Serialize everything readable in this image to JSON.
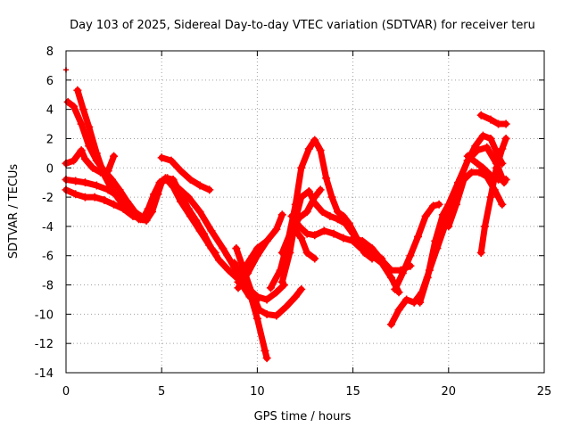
{
  "chart_data": {
    "type": "scatter",
    "title": "Day 103 of 2025, Sidereal Day-to-day VTEC variation (SDTVAR) for receiver teru",
    "xlabel": "GPS time / hours",
    "ylabel": "SDTVAR / TECUs",
    "xlim": [
      0,
      25
    ],
    "ylim": [
      -14,
      8
    ],
    "xticks": [
      0,
      5,
      10,
      15,
      20,
      25
    ],
    "yticks": [
      -14,
      -12,
      -10,
      -8,
      -6,
      -4,
      -2,
      0,
      2,
      4,
      6,
      8
    ],
    "grid": true,
    "marker": "+",
    "color": "#ff0000",
    "series": [
      {
        "name": "s1",
        "points": [
          [
            0,
            6.7
          ]
        ]
      },
      {
        "name": "s2",
        "points": [
          [
            0.1,
            4.5
          ],
          [
            0.4,
            4.2
          ],
          [
            0.8,
            3.0
          ],
          [
            1.2,
            1.5
          ],
          [
            1.6,
            0.5
          ],
          [
            2.0,
            -0.2
          ],
          [
            2.4,
            -0.8
          ],
          [
            2.8,
            -1.5
          ],
          [
            3.2,
            -2.3
          ],
          [
            3.6,
            -3.0
          ],
          [
            3.9,
            -3.3
          ]
        ]
      },
      {
        "name": "s3",
        "points": [
          [
            0.6,
            5.3
          ],
          [
            0.9,
            4.0
          ],
          [
            1.2,
            2.8
          ],
          [
            1.6,
            1.0
          ],
          [
            2.0,
            -0.5
          ],
          [
            2.4,
            -1.5
          ],
          [
            2.8,
            -2.2
          ],
          [
            3.2,
            -2.8
          ],
          [
            3.6,
            -3.3
          ],
          [
            3.9,
            -3.5
          ]
        ]
      },
      {
        "name": "s4",
        "points": [
          [
            0,
            0.3
          ],
          [
            0.4,
            0.5
          ],
          [
            0.8,
            1.2
          ],
          [
            1.0,
            0.6
          ],
          [
            1.4,
            0.0
          ],
          [
            1.8,
            -0.3
          ],
          [
            2.2,
            -0.2
          ],
          [
            2.5,
            0.8
          ]
        ]
      },
      {
        "name": "s5",
        "points": [
          [
            0,
            -0.8
          ],
          [
            0.5,
            -0.9
          ],
          [
            1.0,
            -1.0
          ],
          [
            1.6,
            -1.2
          ],
          [
            2.2,
            -1.5
          ],
          [
            2.8,
            -2.0
          ],
          [
            3.3,
            -2.7
          ],
          [
            3.8,
            -3.5
          ],
          [
            4.2,
            -3.6
          ],
          [
            4.5,
            -3.0
          ],
          [
            4.8,
            -1.8
          ],
          [
            5.0,
            -1.0
          ],
          [
            5.3,
            -0.7
          ],
          [
            5.6,
            -0.8
          ],
          [
            6.0,
            -1.8
          ],
          [
            6.4,
            -2.8
          ],
          [
            6.8,
            -3.6
          ],
          [
            7.2,
            -4.5
          ],
          [
            7.6,
            -5.5
          ],
          [
            7.8,
            -5.8
          ]
        ]
      },
      {
        "name": "s6",
        "points": [
          [
            0,
            -1.5
          ],
          [
            0.5,
            -1.8
          ],
          [
            1.0,
            -2.0
          ],
          [
            1.5,
            -2.0
          ],
          [
            2.0,
            -2.2
          ],
          [
            2.5,
            -2.5
          ],
          [
            3.0,
            -2.8
          ],
          [
            3.5,
            -3.3
          ],
          [
            4.0,
            -3.5
          ],
          [
            4.3,
            -2.8
          ],
          [
            4.6,
            -1.8
          ],
          [
            4.9,
            -1.0
          ],
          [
            5.2,
            -0.7
          ],
          [
            5.6,
            -1.3
          ],
          [
            6.0,
            -2.3
          ],
          [
            6.5,
            -3.3
          ],
          [
            7.0,
            -4.3
          ],
          [
            7.5,
            -5.3
          ],
          [
            8.0,
            -6.3
          ],
          [
            8.5,
            -7.0
          ],
          [
            9.0,
            -7.6
          ],
          [
            9.5,
            -8.2
          ],
          [
            10.0,
            -8.8
          ],
          [
            10.5,
            -9.0
          ],
          [
            11.0,
            -8.5
          ],
          [
            11.4,
            -8.0
          ]
        ]
      },
      {
        "name": "s7",
        "points": [
          [
            5.0,
            0.7
          ],
          [
            5.5,
            0.5
          ],
          [
            6.0,
            -0.2
          ],
          [
            6.5,
            -0.8
          ],
          [
            7.0,
            -1.2
          ],
          [
            7.5,
            -1.5
          ]
        ]
      },
      {
        "name": "s8",
        "points": [
          [
            5.2,
            -0.8
          ],
          [
            5.8,
            -1.3
          ],
          [
            6.4,
            -2.0
          ],
          [
            7.0,
            -3.0
          ],
          [
            7.6,
            -4.3
          ],
          [
            8.2,
            -5.5
          ],
          [
            8.8,
            -6.8
          ],
          [
            9.2,
            -8.0
          ],
          [
            9.6,
            -8.8
          ],
          [
            10.0,
            -9.0
          ]
        ]
      },
      {
        "name": "s9",
        "points": [
          [
            8.8,
            -6.5
          ],
          [
            9.2,
            -7.5
          ],
          [
            9.6,
            -8.5
          ],
          [
            10.0,
            -10.3
          ],
          [
            10.4,
            -12.5
          ],
          [
            10.5,
            -13.0
          ]
        ]
      },
      {
        "name": "s10",
        "points": [
          [
            9.0,
            -8.2
          ],
          [
            9.5,
            -7.2
          ],
          [
            10.0,
            -6.0
          ],
          [
            10.5,
            -5.0
          ],
          [
            11.0,
            -4.2
          ],
          [
            11.3,
            -3.2
          ]
        ]
      },
      {
        "name": "s11",
        "points": [
          [
            8.9,
            -5.5
          ],
          [
            9.3,
            -7.0
          ],
          [
            9.7,
            -8.5
          ],
          [
            10.1,
            -9.7
          ],
          [
            10.5,
            -10.0
          ],
          [
            11.0,
            -10.1
          ],
          [
            11.5,
            -9.5
          ],
          [
            12.0,
            -8.8
          ],
          [
            12.3,
            -8.3
          ]
        ]
      },
      {
        "name": "s12",
        "points": [
          [
            9.0,
            -7.8
          ],
          [
            9.5,
            -6.5
          ],
          [
            10.0,
            -5.5
          ],
          [
            10.5,
            -5.0
          ]
        ]
      },
      {
        "name": "s13",
        "points": [
          [
            10.7,
            -8.2
          ],
          [
            11.2,
            -7.0
          ],
          [
            11.6,
            -5.0
          ],
          [
            12.0,
            -2.5
          ],
          [
            12.3,
            0.0
          ],
          [
            12.7,
            1.3
          ],
          [
            13.0,
            1.9
          ],
          [
            13.3,
            1.2
          ],
          [
            13.6,
            -0.7
          ],
          [
            13.9,
            -2.0
          ],
          [
            14.2,
            -3.0
          ],
          [
            14.5,
            -3.3
          ],
          [
            14.8,
            -3.8
          ],
          [
            15.2,
            -4.8
          ],
          [
            15.6,
            -5.8
          ],
          [
            16.0,
            -6.2
          ]
        ]
      },
      {
        "name": "s14",
        "points": [
          [
            11.3,
            -7.8
          ],
          [
            11.7,
            -5.8
          ],
          [
            12.0,
            -3.5
          ],
          [
            12.3,
            -2.0
          ],
          [
            12.7,
            -1.6
          ],
          [
            13.0,
            -2.4
          ],
          [
            13.4,
            -3.0
          ],
          [
            13.8,
            -3.3
          ],
          [
            14.2,
            -3.5
          ],
          [
            14.6,
            -3.8
          ],
          [
            15.0,
            -4.5
          ],
          [
            15.5,
            -5.5
          ],
          [
            16.0,
            -6.0
          ],
          [
            16.5,
            -6.5
          ],
          [
            17.0,
            -7.5
          ],
          [
            17.4,
            -8.5
          ]
        ]
      },
      {
        "name": "s15",
        "points": [
          [
            11.3,
            -5.8
          ],
          [
            11.8,
            -4.2
          ],
          [
            12.2,
            -3.4
          ],
          [
            12.6,
            -3.0
          ],
          [
            13.0,
            -2.0
          ],
          [
            13.3,
            -1.5
          ]
        ]
      },
      {
        "name": "s16",
        "points": [
          [
            12.0,
            -4.3
          ],
          [
            12.3,
            -4.8
          ],
          [
            12.6,
            -5.8
          ],
          [
            13.0,
            -6.2
          ]
        ]
      },
      {
        "name": "s17",
        "points": [
          [
            11.8,
            -3.3
          ],
          [
            12.2,
            -4.0
          ],
          [
            12.6,
            -4.5
          ],
          [
            13.0,
            -4.6
          ],
          [
            13.5,
            -4.3
          ],
          [
            14.0,
            -4.5
          ],
          [
            14.5,
            -4.8
          ],
          [
            15.0,
            -5.0
          ],
          [
            15.5,
            -5.6
          ],
          [
            16.0,
            -6.0
          ],
          [
            16.5,
            -6.2
          ]
        ]
      },
      {
        "name": "s18",
        "points": [
          [
            15.0,
            -4.8
          ],
          [
            15.5,
            -5.0
          ],
          [
            16.0,
            -5.5
          ],
          [
            16.5,
            -6.3
          ],
          [
            17.0,
            -7.0
          ],
          [
            17.5,
            -7.0
          ],
          [
            18.0,
            -6.7
          ]
        ]
      },
      {
        "name": "s19",
        "points": [
          [
            17.0,
            -10.7
          ],
          [
            17.4,
            -9.7
          ],
          [
            17.8,
            -9.0
          ],
          [
            18.2,
            -9.2
          ],
          [
            18.6,
            -8.5
          ],
          [
            19.0,
            -7.0
          ],
          [
            19.4,
            -5.5
          ],
          [
            19.8,
            -4.0
          ],
          [
            20.2,
            -2.5
          ],
          [
            20.6,
            -0.8
          ],
          [
            21.0,
            0.5
          ],
          [
            21.4,
            1.5
          ],
          [
            21.8,
            2.2
          ],
          [
            22.2,
            2.0
          ],
          [
            22.6,
            0.8
          ],
          [
            22.8,
            0.3
          ]
        ]
      },
      {
        "name": "s20",
        "points": [
          [
            17.2,
            -8.3
          ],
          [
            17.6,
            -7.2
          ],
          [
            18.0,
            -6.0
          ],
          [
            18.4,
            -4.7
          ],
          [
            18.8,
            -3.3
          ],
          [
            19.2,
            -2.6
          ],
          [
            19.5,
            -2.5
          ]
        ]
      },
      {
        "name": "s21",
        "points": [
          [
            18.5,
            -9.2
          ],
          [
            18.9,
            -7.5
          ],
          [
            19.3,
            -5.0
          ],
          [
            19.7,
            -3.2
          ],
          [
            20.0,
            -2.5
          ],
          [
            20.5,
            -1.0
          ],
          [
            21.0,
            0.5
          ],
          [
            21.5,
            1.2
          ],
          [
            22.0,
            1.4
          ],
          [
            22.5,
            0.3
          ],
          [
            22.9,
            -1.0
          ]
        ]
      },
      {
        "name": "s22",
        "points": [
          [
            20.0,
            -4.0
          ],
          [
            20.4,
            -2.5
          ],
          [
            20.8,
            -0.8
          ],
          [
            21.2,
            -0.3
          ],
          [
            21.6,
            -0.3
          ],
          [
            22.0,
            -0.6
          ],
          [
            22.4,
            -1.5
          ],
          [
            22.8,
            -2.5
          ]
        ]
      },
      {
        "name": "s23",
        "points": [
          [
            21.7,
            -5.8
          ],
          [
            21.9,
            -4.0
          ],
          [
            22.2,
            -2.0
          ],
          [
            22.5,
            0.0
          ],
          [
            22.8,
            1.3
          ],
          [
            23.0,
            2.0
          ]
        ]
      },
      {
        "name": "s24",
        "points": [
          [
            21.7,
            3.6
          ],
          [
            22.2,
            3.3
          ],
          [
            22.6,
            3.0
          ],
          [
            23.0,
            3.0
          ]
        ]
      },
      {
        "name": "s25",
        "points": [
          [
            21.0,
            0.8
          ],
          [
            21.5,
            0.3
          ],
          [
            21.8,
            0.0
          ],
          [
            22.2,
            -0.5
          ],
          [
            22.6,
            -0.8
          ],
          [
            23.0,
            -0.8
          ]
        ]
      }
    ]
  }
}
